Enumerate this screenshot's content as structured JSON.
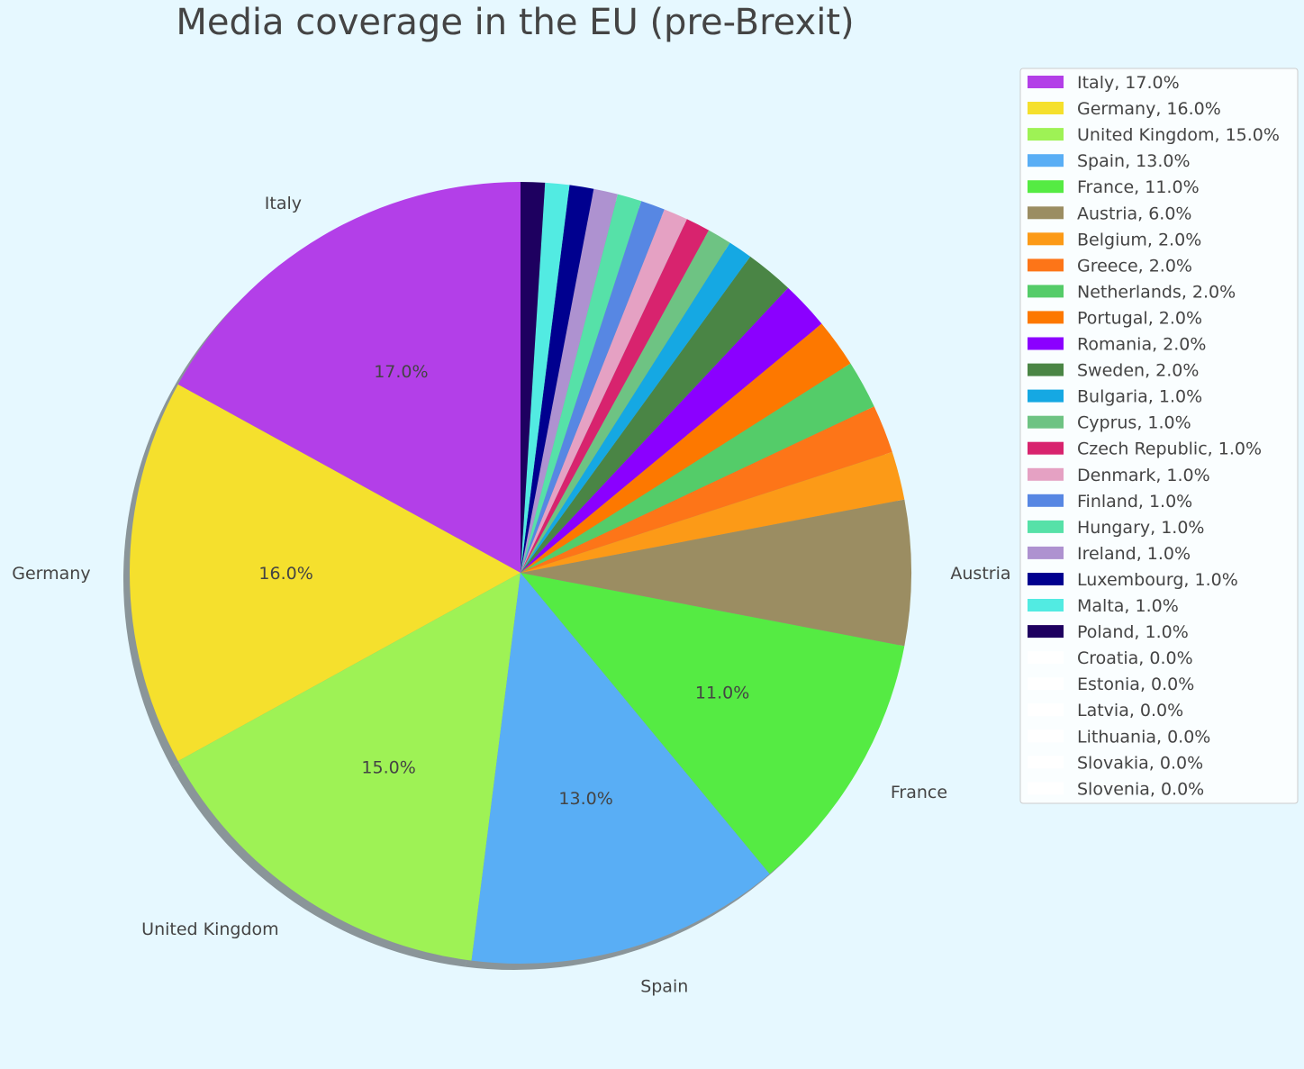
{
  "chart_data": {
    "type": "pie",
    "title": "Media coverage in the EU (pre-Brexit)",
    "start_angle_deg": 90,
    "direction": "counterclockwise",
    "shadow": true,
    "legend_placement": "top-right",
    "labels_on_slices_min_percent": 5,
    "slices": [
      {
        "name": "Italy",
        "value": 17.0,
        "legend": "Italy, 17.0%",
        "pct": "17.0%",
        "color": "#b33fe8"
      },
      {
        "name": "Germany",
        "value": 16.0,
        "legend": "Germany, 16.0%",
        "pct": "16.0%",
        "color": "#f5e02d"
      },
      {
        "name": "United Kingdom",
        "value": 15.0,
        "legend": "United Kingdom, 15.0%",
        "pct": "15.0%",
        "color": "#9ef255"
      },
      {
        "name": "Spain",
        "value": 13.0,
        "legend": "Spain, 13.0%",
        "pct": "13.0%",
        "color": "#59aef5"
      },
      {
        "name": "France",
        "value": 11.0,
        "legend": "France, 11.0%",
        "pct": "11.0%",
        "color": "#55eb43"
      },
      {
        "name": "Austria",
        "value": 6.0,
        "legend": "Austria, 6.0%",
        "pct": "",
        "color": "#9b8d62"
      },
      {
        "name": "Belgium",
        "value": 2.0,
        "legend": "Belgium, 2.0%",
        "pct": "",
        "color": "#fc9a17"
      },
      {
        "name": "Greece",
        "value": 2.0,
        "legend": "Greece, 2.0%",
        "pct": "",
        "color": "#fd7518"
      },
      {
        "name": "Netherlands",
        "value": 2.0,
        "legend": "Netherlands, 2.0%",
        "pct": "",
        "color": "#54cc69"
      },
      {
        "name": "Portugal",
        "value": 2.0,
        "legend": "Portugal, 2.0%",
        "pct": "",
        "color": "#fd7800"
      },
      {
        "name": "Romania",
        "value": 2.0,
        "legend": "Romania, 2.0%",
        "pct": "",
        "color": "#8b00ff"
      },
      {
        "name": "Sweden",
        "value": 2.0,
        "legend": "Sweden, 2.0%",
        "pct": "",
        "color": "#4a8545"
      },
      {
        "name": "Bulgaria",
        "value": 1.0,
        "legend": "Bulgaria, 1.0%",
        "pct": "",
        "color": "#15a8e3"
      },
      {
        "name": "Cyprus",
        "value": 1.0,
        "legend": "Cyprus, 1.0%",
        "pct": "",
        "color": "#6ec383"
      },
      {
        "name": "Czech Republic",
        "value": 1.0,
        "legend": "Czech Republic, 1.0%",
        "pct": "",
        "color": "#d8236e"
      },
      {
        "name": "Denmark",
        "value": 1.0,
        "legend": "Denmark, 1.0%",
        "pct": "",
        "color": "#e5a1c3"
      },
      {
        "name": "Finland",
        "value": 1.0,
        "legend": "Finland, 1.0%",
        "pct": "",
        "color": "#5787e3"
      },
      {
        "name": "Hungary",
        "value": 1.0,
        "legend": "Hungary, 1.0%",
        "pct": "",
        "color": "#56e1a8"
      },
      {
        "name": "Ireland",
        "value": 1.0,
        "legend": "Ireland, 1.0%",
        "pct": "",
        "color": "#ae92d0"
      },
      {
        "name": "Luxembourg",
        "value": 1.0,
        "legend": "Luxembourg, 1.0%",
        "pct": "",
        "color": "#00008f"
      },
      {
        "name": "Malta",
        "value": 1.0,
        "legend": "Malta, 1.0%",
        "pct": "",
        "color": "#52ebe2"
      },
      {
        "name": "Poland",
        "value": 1.0,
        "legend": "Poland, 1.0%",
        "pct": "",
        "color": "#1e0060"
      },
      {
        "name": "Croatia",
        "value": 0.0,
        "legend": "Croatia, 0.0%",
        "pct": "",
        "color": "#ffffff"
      },
      {
        "name": "Estonia",
        "value": 0.0,
        "legend": "Estonia, 0.0%",
        "pct": "",
        "color": "#ffffff"
      },
      {
        "name": "Latvia",
        "value": 0.0,
        "legend": "Latvia, 0.0%",
        "pct": "",
        "color": "#ffffff"
      },
      {
        "name": "Lithuania",
        "value": 0.0,
        "legend": "Lithuania, 0.0%",
        "pct": "",
        "color": "#ffffff"
      },
      {
        "name": "Slovakia",
        "value": 0.0,
        "legend": "Slovakia, 0.0%",
        "pct": "",
        "color": "#ffffff"
      },
      {
        "name": "Slovenia",
        "value": 0.0,
        "legend": "Slovenia, 0.0%",
        "pct": "",
        "color": "#ffffff"
      }
    ]
  }
}
